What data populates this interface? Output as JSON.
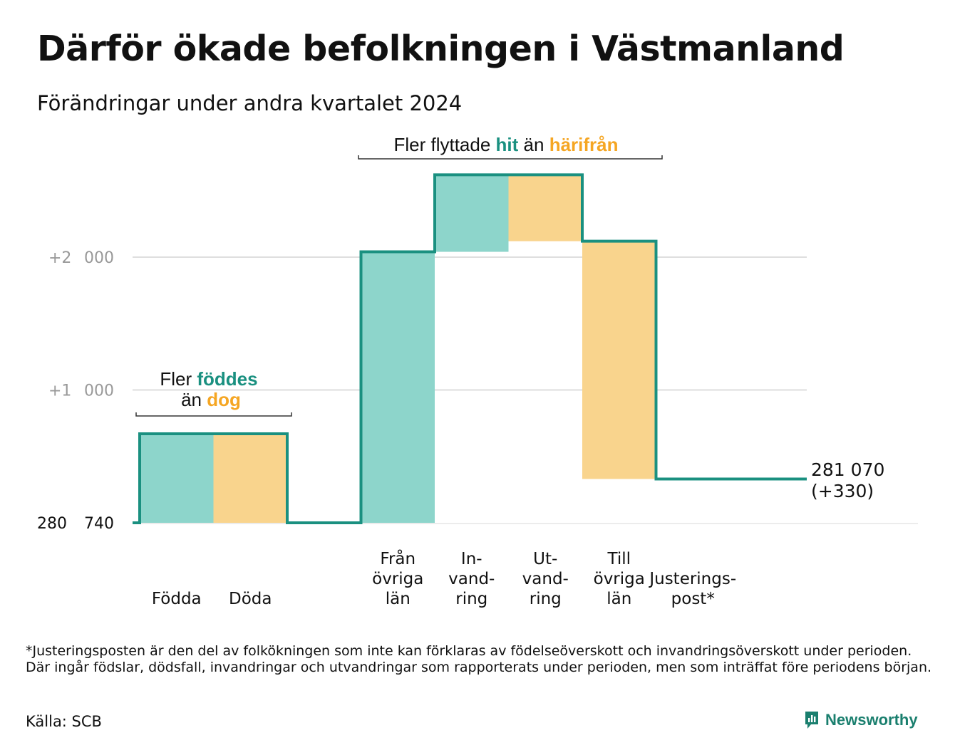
{
  "title": "Därför ökade befolkningen i Västmanland",
  "subtitle": "Förändringar under andra kvartalet 2024",
  "colors": {
    "increase": "#8dd5cb",
    "decrease": "#f9d48d",
    "line": "#1a9080",
    "teal_text": "#1a9080",
    "orange_text": "#f5a623",
    "grid": "#dedede",
    "tick": "#999999"
  },
  "annotations": {
    "birth": {
      "line1_prefix": "Fler ",
      "line1_highlight": "föddes",
      "line2_prefix": "än ",
      "line2_highlight": "dog"
    },
    "move": {
      "prefix": "Fler flyttade ",
      "hit": "hit",
      "middle": " än ",
      "harifran": "härifrån"
    }
  },
  "chart_data": {
    "type": "waterfall",
    "baseline": 280740,
    "y_ticks": [
      {
        "value": 0,
        "label_left": "280",
        "label_right": "740"
      },
      {
        "value": 1000,
        "label_left": "+1",
        "label_right": "000"
      },
      {
        "value": 2000,
        "label_left": "+2",
        "label_right": "000"
      }
    ],
    "categories": [
      {
        "label_lines": [
          "Födda"
        ],
        "change": 670,
        "kind": "increase"
      },
      {
        "label_lines": [
          "Döda"
        ],
        "change": -670,
        "kind": "decrease"
      },
      {
        "label_lines": [
          ""
        ],
        "change": 0,
        "kind": "none"
      },
      {
        "label_lines": [
          "Från",
          "övriga",
          "län"
        ],
        "change": 2040,
        "kind": "increase"
      },
      {
        "label_lines": [
          "In-",
          "vand-",
          "ring"
        ],
        "change": 580,
        "kind": "increase"
      },
      {
        "label_lines": [
          "Ut-",
          "vand-",
          "ring"
        ],
        "change": -500,
        "kind": "decrease"
      },
      {
        "label_lines": [
          "Till",
          "övriga",
          "län"
        ],
        "change": -1790,
        "kind": "decrease"
      },
      {
        "label_lines": [
          "Justerings-",
          "post*"
        ],
        "change": 0,
        "kind": "none"
      }
    ],
    "end_label_line1": "281 070",
    "end_label_line2": "(+330)"
  },
  "footnote": "*Justeringsposten är den del av folkökningen som inte kan förklaras av födelseöverskott och invandringsöverskott under perioden. Där ingår födslar, dödsfall, invandringar och utvandringar som rapporterats under perioden, men som inträffat före periodens början.",
  "source": "Källa: SCB",
  "brand": "Newsworthy"
}
